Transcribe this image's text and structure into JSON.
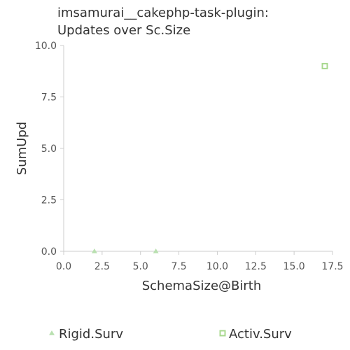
{
  "chart_data": {
    "type": "scatter",
    "title": [
      "imsamurai__cakephp-task-plugin:",
      "Updates over Sc.Size"
    ],
    "xlabel": "SchemaSize@Birth",
    "ylabel": "SumUpd",
    "xlim": [
      0,
      17.5
    ],
    "ylim": [
      0,
      10
    ],
    "xticks": [
      "0.0",
      "2.5",
      "5.0",
      "7.5",
      "10.0",
      "12.5",
      "15.0",
      "17.5"
    ],
    "yticks": [
      "0.0",
      "2.5",
      "5.0",
      "7.5",
      "10.0"
    ],
    "grid": false,
    "legend_position": "bottom",
    "series": [
      {
        "name": "Rigid.Surv",
        "marker": "triangle",
        "color": "#b9e0b0",
        "points": [
          {
            "x": 2,
            "y": 0
          },
          {
            "x": 6,
            "y": 0
          }
        ]
      },
      {
        "name": "Activ.Surv",
        "marker": "square",
        "color": "#a8d88f",
        "points": [
          {
            "x": 17,
            "y": 9
          }
        ]
      }
    ]
  }
}
